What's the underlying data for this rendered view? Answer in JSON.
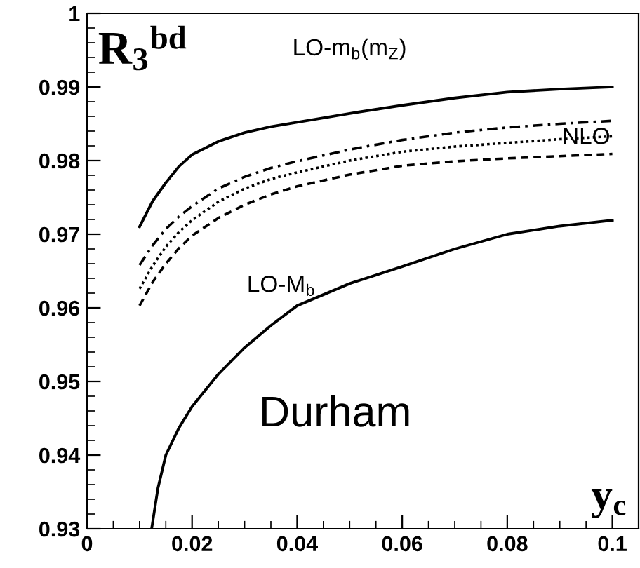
{
  "chart_data": {
    "type": "line",
    "xlabel": "y$_{c}$",
    "ylabel": "R$_{3}$$^{bd}$",
    "x": [
      0.01,
      0.0125,
      0.015,
      0.0175,
      0.02,
      0.025,
      0.03,
      0.035,
      0.04,
      0.05,
      0.06,
      0.07,
      0.08,
      0.09,
      0.1
    ],
    "series": [
      {
        "color": "#000000",
        "line_style": "solid",
        "values": [
          0.971,
          0.9745,
          0.977,
          0.9792,
          0.9808,
          0.9826,
          0.9838,
          0.9846,
          0.9852,
          0.9864,
          0.9875,
          0.9885,
          0.9893,
          0.9897,
          0.99
        ]
      },
      {
        "color": "#000000",
        "line_style": "dashdot",
        "values": [
          0.9658,
          0.9685,
          0.9707,
          0.9724,
          0.9738,
          0.9762,
          0.9778,
          0.979,
          0.9799,
          0.9815,
          0.9828,
          0.9838,
          0.9845,
          0.985,
          0.9854
        ]
      },
      {
        "color": "#000000",
        "line_style": "dotted",
        "values": [
          0.9626,
          0.9657,
          0.9683,
          0.9703,
          0.9719,
          0.9744,
          0.9762,
          0.9775,
          0.9784,
          0.98,
          0.9812,
          0.9819,
          0.9824,
          0.9829,
          0.9833
        ]
      },
      {
        "color": "#000000",
        "line_style": "dashed",
        "values": [
          0.9603,
          0.9635,
          0.966,
          0.9681,
          0.9698,
          0.9722,
          0.974,
          0.9754,
          0.9765,
          0.9781,
          0.9793,
          0.9799,
          0.9803,
          0.9806,
          0.9809
        ]
      },
      {
        "color": "#000000",
        "line_style": "solid",
        "x": [
          0.0123,
          0.0135,
          0.015,
          0.0175,
          0.02,
          0.025,
          0.03,
          0.035,
          0.04,
          0.05,
          0.06,
          0.07,
          0.08,
          0.09,
          0.1
        ],
        "values": [
          0.93,
          0.9355,
          0.94,
          0.9437,
          0.9466,
          0.951,
          0.9546,
          0.9576,
          0.9603,
          0.9633,
          0.9656,
          0.968,
          0.97,
          0.9711,
          0.9719
        ]
      }
    ],
    "xlim": [
      0,
      0.105
    ],
    "ylim": [
      0.93,
      1
    ],
    "xticks": [
      0,
      0.02,
      0.04,
      0.06,
      0.08,
      0.1
    ],
    "yticks": [
      0.93,
      0.94,
      0.95,
      0.96,
      0.97,
      0.98,
      0.99,
      1
    ],
    "annotations": [
      "LO-m$_{b}$(m$_{Z}$)",
      "NLO",
      "LO-M$_{b}$",
      "Durham"
    ],
    "grid": false,
    "legend": false,
    "marker": "none"
  }
}
